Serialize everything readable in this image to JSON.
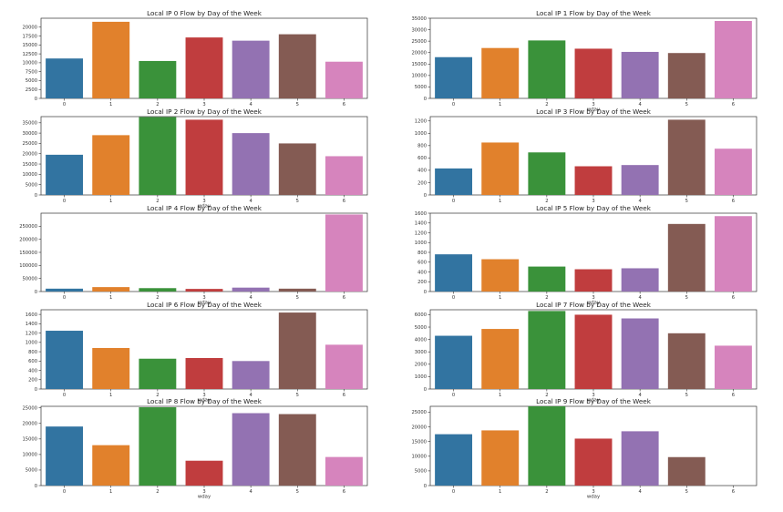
{
  "chart_data": [
    {
      "type": "bar",
      "title": "Local IP 0 Flow by Day of the Week",
      "xlabel": "wday",
      "ylabel": "",
      "categories": [
        "0",
        "1",
        "2",
        "3",
        "4",
        "5",
        "6"
      ],
      "values": [
        11200,
        21500,
        10500,
        17100,
        16200,
        18000,
        10300
      ],
      "ylim": [
        0,
        22500
      ],
      "yticks": [
        0,
        2500,
        5000,
        7500,
        10000,
        12500,
        15000,
        17500,
        20000
      ],
      "show_xlabel": false
    },
    {
      "type": "bar",
      "title": "Local IP 1 Flow by Day of the Week",
      "xlabel": "wday",
      "ylabel": "",
      "categories": [
        "0",
        "1",
        "2",
        "3",
        "4",
        "5",
        "6"
      ],
      "values": [
        18000,
        22000,
        25300,
        21700,
        20300,
        19800,
        33800
      ],
      "ylim": [
        0,
        35000
      ],
      "yticks": [
        0,
        5000,
        10000,
        15000,
        20000,
        25000,
        30000,
        35000
      ],
      "show_xlabel": true
    },
    {
      "type": "bar",
      "title": "Local IP 2 Flow by Day of the Week",
      "xlabel": "wday",
      "ylabel": "",
      "categories": [
        "0",
        "1",
        "2",
        "3",
        "4",
        "5",
        "6"
      ],
      "values": [
        19500,
        29000,
        37800,
        36500,
        30000,
        25000,
        18800
      ],
      "ylim": [
        0,
        38000
      ],
      "yticks": [
        0,
        5000,
        10000,
        15000,
        20000,
        25000,
        30000,
        35000
      ],
      "show_xlabel": true
    },
    {
      "type": "bar",
      "title": "Local IP 3 Flow by Day of the Week",
      "xlabel": "wday",
      "ylabel": "",
      "categories": [
        "0",
        "1",
        "2",
        "3",
        "4",
        "5",
        "6"
      ],
      "values": [
        430,
        850,
        690,
        465,
        485,
        1220,
        750
      ],
      "ylim": [
        0,
        1270
      ],
      "yticks": [
        0,
        200,
        400,
        600,
        800,
        1000,
        1200
      ],
      "show_xlabel": false
    },
    {
      "type": "bar",
      "title": "Local IP 4 Flow by Day of the Week",
      "xlabel": "wday",
      "ylabel": "",
      "categories": [
        "0",
        "1",
        "2",
        "3",
        "4",
        "5",
        "6"
      ],
      "values": [
        11000,
        17000,
        13000,
        10000,
        15000,
        11000,
        295000
      ],
      "ylim": [
        0,
        300000
      ],
      "yticks": [
        0,
        50000,
        100000,
        150000,
        200000,
        250000
      ],
      "show_xlabel": true
    },
    {
      "type": "bar",
      "title": "Local IP 5 Flow by Day of the Week",
      "xlabel": "wday",
      "ylabel": "",
      "categories": [
        "0",
        "1",
        "2",
        "3",
        "4",
        "5",
        "6"
      ],
      "values": [
        760,
        660,
        510,
        455,
        475,
        1380,
        1540
      ],
      "ylim": [
        0,
        1600
      ],
      "yticks": [
        0,
        200,
        400,
        600,
        800,
        1000,
        1200,
        1400,
        1600
      ],
      "show_xlabel": true
    },
    {
      "type": "bar",
      "title": "Local IP 6 Flow by Day of the Week",
      "xlabel": "wday",
      "ylabel": "",
      "categories": [
        "0",
        "1",
        "2",
        "3",
        "4",
        "5",
        "6"
      ],
      "values": [
        1250,
        880,
        650,
        665,
        600,
        1640,
        950
      ],
      "ylim": [
        0,
        1700
      ],
      "yticks": [
        0,
        200,
        400,
        600,
        800,
        1000,
        1200,
        1400,
        1600
      ],
      "show_xlabel": true
    },
    {
      "type": "bar",
      "title": "Local IP 7 Flow by Day of the Week",
      "xlabel": "wday",
      "ylabel": "",
      "categories": [
        "0",
        "1",
        "2",
        "3",
        "4",
        "5",
        "6"
      ],
      "values": [
        4300,
        4850,
        6300,
        6000,
        5700,
        4500,
        3500
      ],
      "ylim": [
        0,
        6400
      ],
      "yticks": [
        0,
        1000,
        2000,
        3000,
        4000,
        5000,
        6000
      ],
      "show_xlabel": true
    },
    {
      "type": "bar",
      "title": "Local IP 8 Flow by Day of the Week",
      "xlabel": "wday",
      "ylabel": "",
      "categories": [
        "0",
        "1",
        "2",
        "3",
        "4",
        "5",
        "6"
      ],
      "values": [
        19000,
        13000,
        25200,
        8000,
        23300,
        23000,
        9200
      ],
      "ylim": [
        0,
        25500
      ],
      "yticks": [
        0,
        5000,
        10000,
        15000,
        20000,
        25000
      ],
      "show_xlabel": true
    },
    {
      "type": "bar",
      "title": "Local IP 9 Flow by Day of the Week",
      "xlabel": "wday",
      "ylabel": "",
      "categories": [
        "0",
        "1",
        "2",
        "3",
        "4",
        "5",
        "6"
      ],
      "values": [
        17500,
        18800,
        27000,
        16000,
        18500,
        9700,
        0
      ],
      "ylim": [
        0,
        27000
      ],
      "yticks": [
        0,
        5000,
        10000,
        15000,
        20000,
        25000
      ],
      "show_xlabel": true
    }
  ],
  "palette": [
    "#3274a1",
    "#e1812c",
    "#3a923a",
    "#c03d3e",
    "#9372b2",
    "#845b53",
    "#d684bd"
  ]
}
